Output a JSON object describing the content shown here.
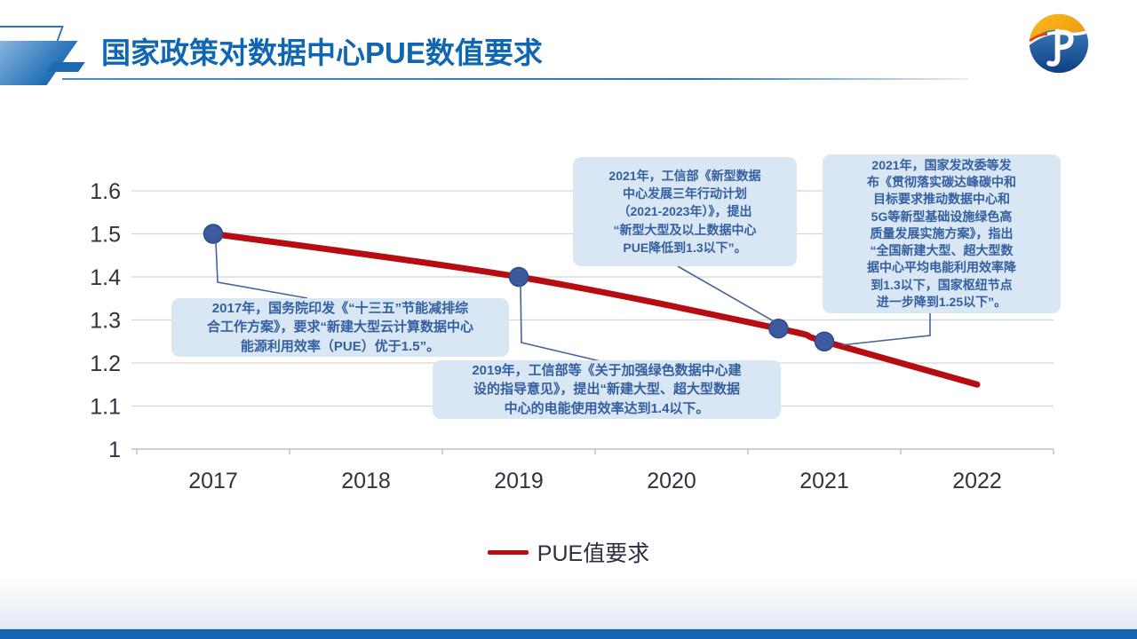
{
  "header": {
    "title": "国家政策对数据中心PUE数值要求"
  },
  "chart_data": {
    "type": "line",
    "title": "国家政策对数据中心PUE数值要求",
    "x_categories": [
      "2017",
      "2018",
      "2019",
      "2020",
      "2021",
      "2022"
    ],
    "y_tick_labels": [
      "1.6",
      "1.5",
      "1.4",
      "1.3",
      "1.2",
      "1.1",
      "1"
    ],
    "ylim": [
      1,
      1.6
    ],
    "grid": true,
    "legend_position": "bottom-center",
    "series": [
      {
        "name": "PUE值要求",
        "color": "#b50d12",
        "marker_color": "#3b5aa0",
        "points": [
          [
            2017,
            1.5
          ],
          [
            2019,
            1.4
          ],
          [
            2020.7,
            1.28
          ],
          [
            2021,
            1.25
          ],
          [
            2022,
            1.15
          ]
        ],
        "markers": [
          [
            2017,
            1.5
          ],
          [
            2019,
            1.4
          ],
          [
            2020.7,
            1.28
          ],
          [
            2021,
            1.25
          ]
        ]
      }
    ],
    "annotations": [
      {
        "id": "2017",
        "text": "2017年，国务院印发《“十三五”节能减排综\n合工作方案》，要求“新建大型云计算数据中心\n能源利用效率（PUE）优于1.5”。"
      },
      {
        "id": "2019",
        "text": "2019年，工信部等《关于加强绿色数据中心建\n设的指导意见》，提出“新建大型、超大型数据\n中心的电能使用效率达到1.4以下。"
      },
      {
        "id": "2021-miit",
        "text": "2021年，工信部《新型数据\n中心发展三年行动计划\n（2021-2023年）》，提出\n“新型大型及以上数据中心\nPUE降低到1.3以下”。"
      },
      {
        "id": "2021-ndrc",
        "text": "2021年，国家发改委等发\n布《贯彻落实碳达峰碳中和\n目标要求推动数据中心和\n5G等新型基础设施绿色高\n质量发展实施方案》，指出\n“全国新建大型、超大型数\n据中心平均电能利用效率降\n到1.3以下，国家枢纽节点\n进一步降到1.25以下”。"
      }
    ]
  },
  "colors": {
    "title": "#0f66b2",
    "line": "#b50d12",
    "marker": "#3b5aa0",
    "callout_bg": "#d9e6f3",
    "callout_text": "#35609f",
    "bottom_bar": "#1266b1"
  }
}
